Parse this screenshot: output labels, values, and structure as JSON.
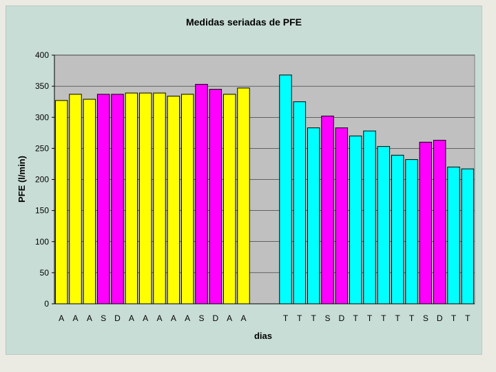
{
  "colors": {
    "slide_background": "#ebeae3",
    "chart_area": "#c8ddd5",
    "plot_area": "#c0c0c0",
    "gridline": "#000000",
    "yellow": "#ffff00",
    "magenta": "#ff00ff",
    "cyan": "#00ffff"
  },
  "chart_data": {
    "type": "bar",
    "title": "Medidas seriadas de PFE",
    "xlabel": "dias",
    "ylabel": "PFE (l/min)",
    "ylim": [
      0,
      400
    ],
    "yticks": [
      0,
      50,
      100,
      150,
      200,
      250,
      300,
      350,
      400
    ],
    "grid": true,
    "legend": "none",
    "categories": [
      "A",
      "A",
      "A",
      "S",
      "D",
      "A",
      "A",
      "A",
      "A",
      "A",
      "S",
      "D",
      "A",
      "A",
      "",
      "",
      "T",
      "T",
      "T",
      "S",
      "D",
      "T",
      "T",
      "T",
      "T",
      "T",
      "S",
      "D",
      "T",
      "T"
    ],
    "values": [
      327,
      337,
      329,
      337,
      337,
      339,
      339,
      339,
      334,
      337,
      353,
      345,
      337,
      347,
      null,
      null,
      368,
      325,
      283,
      302,
      283,
      270,
      278,
      253,
      239,
      232,
      260,
      263,
      220,
      217
    ],
    "bar_colors": [
      "yellow",
      "yellow",
      "yellow",
      "magenta",
      "magenta",
      "yellow",
      "yellow",
      "yellow",
      "yellow",
      "yellow",
      "magenta",
      "magenta",
      "yellow",
      "yellow",
      "",
      "",
      "cyan",
      "cyan",
      "cyan",
      "magenta",
      "magenta",
      "cyan",
      "cyan",
      "cyan",
      "cyan",
      "cyan",
      "magenta",
      "magenta",
      "cyan",
      "cyan"
    ]
  }
}
